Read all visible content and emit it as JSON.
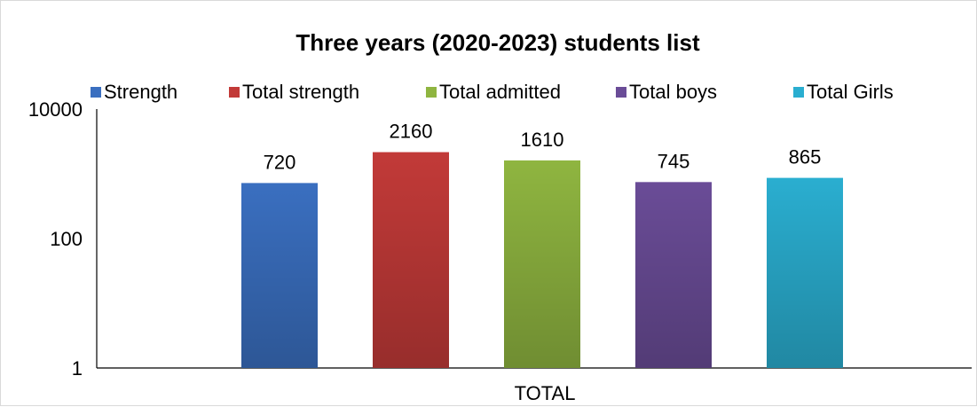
{
  "chart_data": {
    "type": "bar",
    "title": "Three years (2020-2023)  students list",
    "categories": [
      "TOTAL"
    ],
    "series": [
      {
        "name": "Strength",
        "values": [
          720
        ],
        "label": "720",
        "color": "#3a6fc0"
      },
      {
        "name": "Total strength",
        "values": [
          2160
        ],
        "label": "2160",
        "color": "#c23a38"
      },
      {
        "name": "Total admitted",
        "values": [
          1610
        ],
        "label": "1610",
        "color": "#8fb540"
      },
      {
        "name": "Total boys",
        "values": [
          745
        ],
        "label": "745",
        "color": "#6a4c97"
      },
      {
        "name": "Total Girls",
        "values": [
          865
        ],
        "label": "865",
        "color": "#2aaed0"
      }
    ],
    "y_scale": "log",
    "ylim": [
      1,
      10000
    ],
    "y_ticks": [
      {
        "value": 1,
        "label": "1"
      },
      {
        "value": 100,
        "label": "100"
      },
      {
        "value": 10000,
        "label": "10000"
      }
    ],
    "legend_position": "top",
    "grid": false
  }
}
